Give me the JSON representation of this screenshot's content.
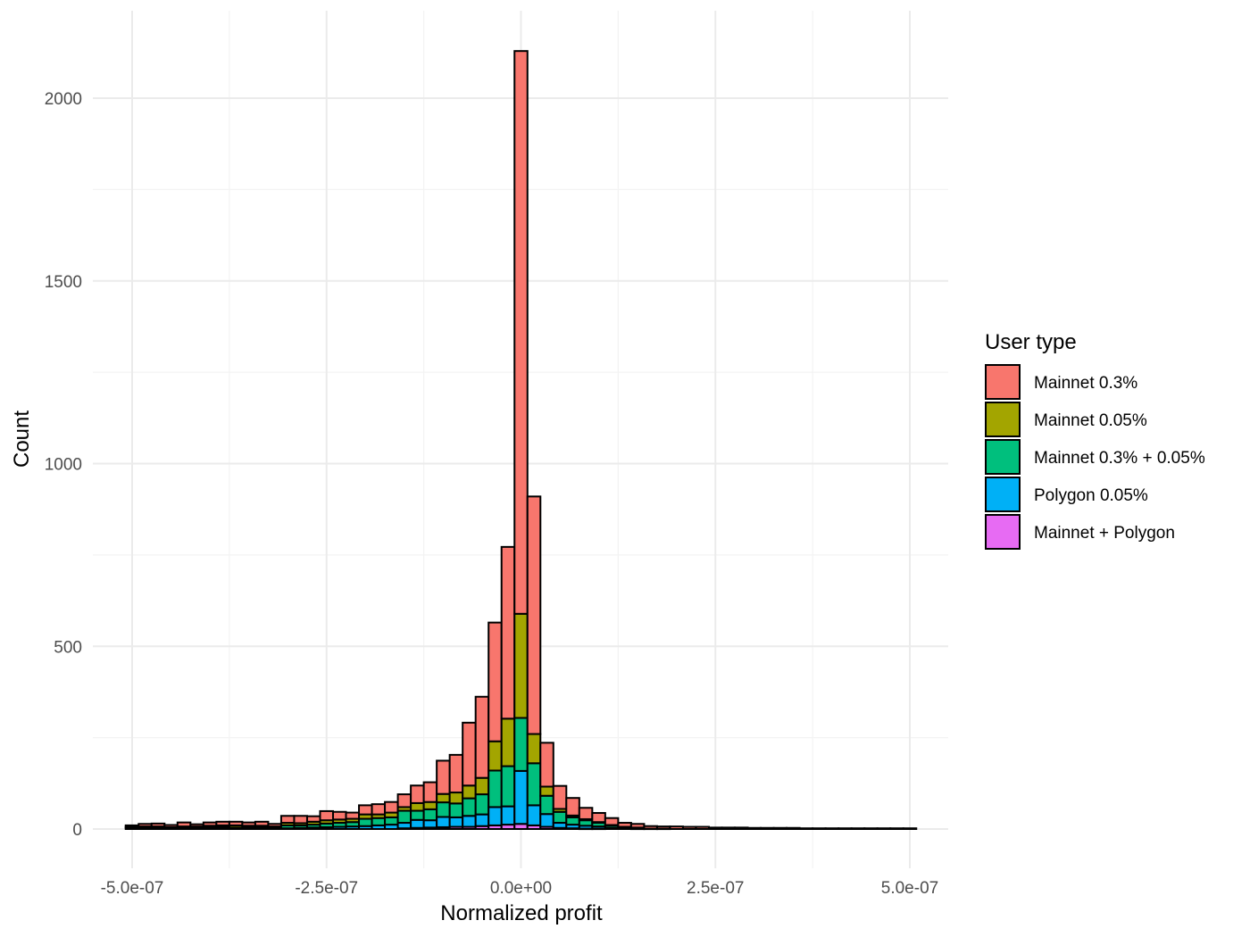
{
  "chart_data": {
    "type": "bar",
    "stacked": true,
    "xlabel": "Normalized profit",
    "ylabel": "Count",
    "xlim": [
      -5e-07,
      5e-07
    ],
    "ylim": [
      0,
      2130
    ],
    "x_ticks": [
      {
        "value": -5e-07,
        "label": "-5.0e-07"
      },
      {
        "value": -2.5e-07,
        "label": "-2.5e-07"
      },
      {
        "value": 0,
        "label": "0.0e+00"
      },
      {
        "value": 2.5e-07,
        "label": "2.5e-07"
      },
      {
        "value": 5e-07,
        "label": "5.0e-07"
      }
    ],
    "y_ticks": [
      {
        "value": 0,
        "label": "0"
      },
      {
        "value": 500,
        "label": "500"
      },
      {
        "value": 1000,
        "label": "1000"
      },
      {
        "value": 1500,
        "label": "1500"
      },
      {
        "value": 2000,
        "label": "2000"
      }
    ],
    "grid": true,
    "legend_position": "right",
    "legend_title": "User type",
    "bin_width": 1.6667e-08,
    "bin_centers": [
      -5e-07,
      -4.8333e-07,
      -4.6667e-07,
      -4.5e-07,
      -4.3333e-07,
      -4.1667e-07,
      -4e-07,
      -3.8333e-07,
      -3.6667e-07,
      -3.5e-07,
      -3.3333e-07,
      -3.1667e-07,
      -3e-07,
      -2.8333e-07,
      -2.6667e-07,
      -2.5e-07,
      -2.3333e-07,
      -2.1667e-07,
      -2e-07,
      -1.8333e-07,
      -1.6667e-07,
      -1.5e-07,
      -1.3333e-07,
      -1.1667e-07,
      -1e-07,
      -8.3333e-08,
      -6.6667e-08,
      -5e-08,
      -3.3333e-08,
      -1.6667e-08,
      0.0,
      1.6667e-08,
      3.3333e-08,
      5e-08,
      6.6667e-08,
      8.3333e-08,
      1e-07,
      1.1667e-07,
      1.3333e-07,
      1.5e-07,
      1.6667e-07,
      1.8333e-07,
      2e-07,
      2.1667e-07,
      2.3333e-07,
      2.5e-07,
      2.6667e-07,
      2.8333e-07,
      3e-07,
      3.1667e-07,
      3.3333e-07,
      3.5e-07,
      3.6667e-07,
      3.8333e-07,
      4e-07,
      4.1667e-07,
      4.3333e-07,
      4.5e-07,
      4.6667e-07,
      4.8333e-07,
      5e-07
    ],
    "series": [
      {
        "name": "Mainnet + Polygon",
        "color": "#E76BF3",
        "values": [
          0,
          0,
          0,
          0,
          0,
          0,
          0,
          0,
          0,
          0,
          0,
          0,
          0,
          0,
          0,
          0,
          0,
          0,
          0,
          0,
          0,
          2,
          3,
          4,
          5,
          6,
          6,
          8,
          10,
          12,
          14,
          10,
          6,
          3,
          2,
          1,
          1,
          0,
          0,
          0,
          0,
          0,
          0,
          0,
          0,
          0,
          0,
          0,
          0,
          0,
          0,
          0,
          0,
          0,
          0,
          0,
          0,
          0,
          0,
          0,
          0
        ]
      },
      {
        "name": "Polygon 0.05%",
        "color": "#00B0F6",
        "values": [
          0,
          0,
          0,
          0,
          0,
          0,
          0,
          0,
          0,
          0,
          0,
          0,
          2,
          3,
          4,
          5,
          6,
          7,
          8,
          10,
          12,
          15,
          22,
          20,
          28,
          26,
          30,
          32,
          50,
          50,
          145,
          55,
          35,
          14,
          10,
          8,
          6,
          4,
          2,
          1,
          0,
          0,
          0,
          0,
          0,
          0,
          0,
          0,
          0,
          0,
          0,
          0,
          0,
          0,
          0,
          0,
          0,
          0,
          0,
          0,
          0
        ]
      },
      {
        "name": "Mainnet 0.3% + 0.05%",
        "color": "#00BF7D",
        "values": [
          3,
          3,
          3,
          2,
          3,
          3,
          4,
          5,
          4,
          4,
          4,
          3,
          8,
          7,
          8,
          10,
          11,
          12,
          20,
          20,
          20,
          33,
          25,
          30,
          40,
          38,
          48,
          55,
          100,
          110,
          145,
          115,
          50,
          30,
          20,
          15,
          10,
          6,
          3,
          2,
          1,
          1,
          0,
          0,
          0,
          0,
          0,
          0,
          0,
          0,
          0,
          0,
          0,
          0,
          0,
          0,
          0,
          0,
          0,
          0,
          0
        ]
      },
      {
        "name": "Mainnet 0.05%",
        "color": "#A3A500",
        "values": [
          3,
          4,
          4,
          3,
          4,
          4,
          5,
          5,
          6,
          5,
          5,
          4,
          7,
          6,
          8,
          9,
          9,
          9,
          12,
          10,
          13,
          10,
          21,
          20,
          23,
          30,
          35,
          45,
          80,
          130,
          285,
          80,
          25,
          8,
          5,
          3,
          2,
          1,
          1,
          1,
          0,
          0,
          0,
          0,
          0,
          0,
          0,
          0,
          0,
          0,
          0,
          0,
          0,
          0,
          0,
          0,
          0,
          0,
          0,
          0,
          0
        ]
      },
      {
        "name": "Mainnet 0.3%",
        "color": "#F8766D",
        "values": [
          4,
          7,
          8,
          6,
          11,
          6,
          9,
          10,
          10,
          9,
          11,
          7,
          19,
          20,
          15,
          25,
          21,
          17,
          25,
          28,
          29,
          35,
          48,
          54,
          91,
          103,
          172,
          222,
          325,
          470,
          1540,
          650,
          120,
          63,
          48,
          31,
          25,
          19,
          11,
          10,
          7,
          6,
          7,
          6,
          6,
          4,
          4,
          4,
          3,
          3,
          3,
          3,
          2,
          2,
          2,
          2,
          2,
          2,
          2,
          2,
          2
        ]
      }
    ]
  }
}
